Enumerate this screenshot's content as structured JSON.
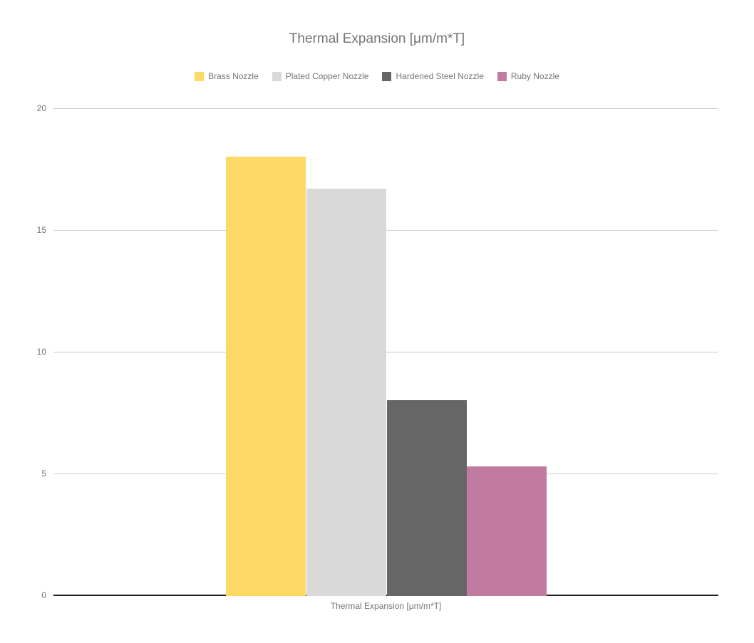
{
  "chart_data": {
    "type": "bar",
    "title": "Thermal Expansion [μm/m*T]",
    "categories": [
      "Thermal Expansion [μm/m*T]"
    ],
    "series": [
      {
        "name": "Brass Nozzle",
        "color": "#FFD966",
        "values": [
          18
        ]
      },
      {
        "name": "Plated Copper Nozzle",
        "color": "#D9D9D9",
        "values": [
          16.7
        ]
      },
      {
        "name": "Hardened Steel Nozzle",
        "color": "#666666",
        "values": [
          8
        ]
      },
      {
        "name": "Ruby Nozzle",
        "color": "#C27BA0",
        "values": [
          5.3
        ]
      }
    ],
    "ylim": [
      0,
      20
    ],
    "yticks": [
      20,
      15,
      10,
      5,
      0
    ],
    "grid": true,
    "legend_position": "top",
    "xlabel": "",
    "ylabel": "",
    "background_color": "#ffffff",
    "gridline_color": "#cccccc",
    "baseline_color": "#222222",
    "text_color": "#757575"
  }
}
